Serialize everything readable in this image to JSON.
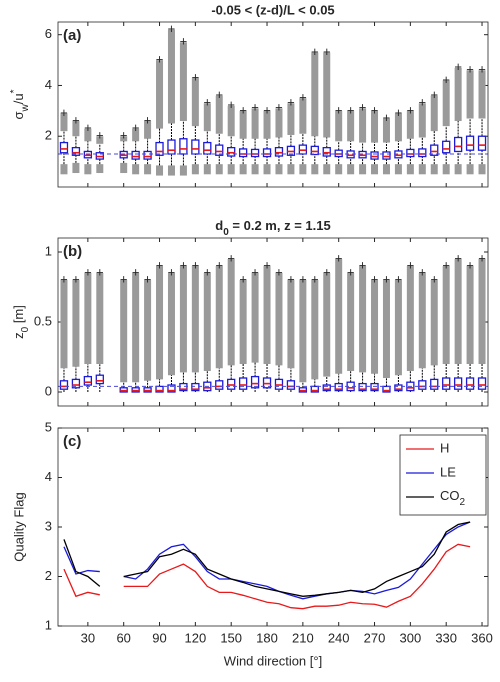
{
  "chart_data": [
    {
      "type": "box",
      "title": "-0.05 < (z-d)/L < 0.05",
      "panel_label": "(a)",
      "ylabel": [
        "σ",
        "w",
        "/u",
        "*"
      ],
      "xlim": [
        5,
        365
      ],
      "xticks": [
        30,
        60,
        90,
        120,
        150,
        180,
        210,
        240,
        270,
        300,
        330,
        360
      ],
      "ylim": [
        0,
        6.5
      ],
      "yticks": [
        2,
        4,
        6
      ],
      "reference_line": 1.3,
      "positions": [
        10,
        20,
        30,
        40,
        60,
        70,
        80,
        90,
        100,
        110,
        120,
        130,
        140,
        150,
        160,
        170,
        180,
        190,
        200,
        210,
        220,
        230,
        240,
        250,
        260,
        270,
        280,
        290,
        300,
        310,
        320,
        330,
        340,
        350,
        360
      ],
      "median": [
        1.5,
        1.35,
        1.25,
        1.2,
        1.25,
        1.2,
        1.2,
        1.4,
        1.45,
        1.5,
        1.5,
        1.45,
        1.4,
        1.35,
        1.3,
        1.3,
        1.3,
        1.35,
        1.4,
        1.45,
        1.4,
        1.35,
        1.3,
        1.25,
        1.25,
        1.2,
        1.2,
        1.25,
        1.3,
        1.3,
        1.4,
        1.5,
        1.6,
        1.65,
        1.65
      ],
      "q1": [
        1.35,
        1.25,
        1.15,
        1.1,
        1.15,
        1.1,
        1.1,
        1.25,
        1.3,
        1.3,
        1.3,
        1.3,
        1.25,
        1.22,
        1.2,
        1.2,
        1.2,
        1.22,
        1.25,
        1.3,
        1.28,
        1.22,
        1.2,
        1.15,
        1.15,
        1.1,
        1.1,
        1.15,
        1.2,
        1.2,
        1.25,
        1.35,
        1.4,
        1.45,
        1.45
      ],
      "q3": [
        1.75,
        1.55,
        1.4,
        1.35,
        1.4,
        1.4,
        1.4,
        1.75,
        1.85,
        1.9,
        1.85,
        1.75,
        1.65,
        1.55,
        1.5,
        1.48,
        1.5,
        1.55,
        1.6,
        1.65,
        1.6,
        1.55,
        1.45,
        1.42,
        1.4,
        1.38,
        1.38,
        1.42,
        1.48,
        1.5,
        1.65,
        1.8,
        1.95,
        2.0,
        2.0
      ],
      "whislo": [
        0.9,
        0.95,
        0.9,
        0.9,
        0.95,
        0.9,
        0.9,
        0.85,
        0.85,
        0.85,
        0.9,
        0.9,
        0.9,
        0.9,
        0.9,
        0.9,
        0.9,
        0.9,
        0.9,
        0.9,
        0.9,
        0.9,
        0.9,
        0.9,
        0.9,
        0.9,
        0.9,
        0.9,
        0.9,
        0.9,
        0.9,
        0.9,
        0.9,
        0.9,
        0.9
      ],
      "whishi": [
        2.2,
        2.0,
        1.8,
        1.7,
        1.8,
        1.8,
        1.9,
        2.3,
        2.5,
        2.6,
        2.4,
        2.2,
        2.1,
        2.0,
        1.9,
        1.9,
        1.9,
        1.95,
        2.05,
        2.1,
        2.0,
        1.95,
        1.8,
        1.8,
        1.75,
        1.75,
        1.75,
        1.8,
        1.9,
        1.95,
        2.2,
        2.4,
        2.6,
        2.7,
        2.7
      ],
      "outlier_max": [
        2.9,
        2.6,
        2.3,
        2.0,
        2.0,
        2.3,
        2.6,
        5.0,
        6.2,
        5.7,
        4.3,
        3.3,
        3.6,
        3.2,
        3.0,
        3.1,
        3.0,
        3.1,
        3.3,
        3.5,
        5.3,
        5.3,
        3.0,
        3.0,
        3.1,
        3.0,
        2.7,
        2.9,
        3.0,
        3.3,
        3.6,
        4.2,
        4.7,
        4.6,
        4.6
      ],
      "outlier_min": [
        0.5,
        0.55,
        0.5,
        0.55,
        0.55,
        0.5,
        0.5,
        0.45,
        0.45,
        0.45,
        0.5,
        0.5,
        0.5,
        0.5,
        0.5,
        0.5,
        0.5,
        0.5,
        0.5,
        0.5,
        0.5,
        0.5,
        0.5,
        0.5,
        0.5,
        0.5,
        0.5,
        0.5,
        0.5,
        0.5,
        0.5,
        0.5,
        0.5,
        0.5,
        0.5
      ]
    },
    {
      "type": "box",
      "title": [
        "d",
        "0",
        " = 0.2 m, z = 1.15"
      ],
      "panel_label": "(b)",
      "ylabel": [
        "z",
        "0",
        " [m]"
      ],
      "xlim": [
        5,
        365
      ],
      "xticks": [
        30,
        60,
        90,
        120,
        150,
        180,
        210,
        240,
        270,
        300,
        330,
        360
      ],
      "ylim": [
        -0.1,
        1.1
      ],
      "yticks": [
        0,
        0.5,
        1
      ],
      "reference_line": 0.04,
      "positions": [
        10,
        20,
        30,
        40,
        60,
        70,
        80,
        90,
        100,
        110,
        120,
        130,
        140,
        150,
        160,
        170,
        180,
        190,
        200,
        210,
        220,
        230,
        240,
        250,
        260,
        270,
        280,
        290,
        300,
        310,
        320,
        330,
        340,
        350,
        360
      ],
      "median": [
        0.04,
        0.05,
        0.07,
        0.08,
        0.01,
        0.01,
        0.01,
        0.01,
        0.01,
        0.02,
        0.02,
        0.03,
        0.04,
        0.05,
        0.05,
        0.06,
        0.06,
        0.05,
        0.04,
        0.01,
        0.01,
        0.02,
        0.02,
        0.03,
        0.02,
        0.02,
        0.01,
        0.02,
        0.03,
        0.04,
        0.04,
        0.05,
        0.05,
        0.05,
        0.05
      ],
      "q1": [
        0.02,
        0.03,
        0.05,
        0.06,
        0.0,
        0.0,
        0.0,
        0.0,
        0.0,
        0.01,
        0.01,
        0.01,
        0.02,
        0.02,
        0.02,
        0.03,
        0.03,
        0.02,
        0.02,
        0.0,
        0.0,
        0.01,
        0.01,
        0.01,
        0.01,
        0.01,
        0.0,
        0.01,
        0.01,
        0.02,
        0.02,
        0.02,
        0.02,
        0.02,
        0.02
      ],
      "q3": [
        0.08,
        0.09,
        0.11,
        0.12,
        0.03,
        0.03,
        0.03,
        0.04,
        0.05,
        0.06,
        0.06,
        0.07,
        0.08,
        0.09,
        0.1,
        0.11,
        0.1,
        0.09,
        0.08,
        0.03,
        0.04,
        0.05,
        0.06,
        0.07,
        0.06,
        0.06,
        0.04,
        0.05,
        0.07,
        0.08,
        0.09,
        0.1,
        0.1,
        0.1,
        0.1
      ],
      "whislo": [
        0.0,
        0.0,
        0.0,
        0.0,
        0.0,
        0.0,
        0.0,
        0.0,
        0.0,
        0.0,
        0.0,
        0.0,
        0.0,
        0.0,
        0.0,
        0.0,
        0.0,
        0.0,
        0.0,
        0.0,
        0.0,
        0.0,
        0.0,
        0.0,
        0.0,
        0.0,
        0.0,
        0.0,
        0.0,
        0.0,
        0.0,
        0.0,
        0.0,
        0.0,
        0.0
      ],
      "whishi": [
        0.17,
        0.18,
        0.2,
        0.2,
        0.07,
        0.07,
        0.08,
        0.09,
        0.12,
        0.14,
        0.14,
        0.15,
        0.17,
        0.19,
        0.2,
        0.21,
        0.2,
        0.19,
        0.17,
        0.07,
        0.09,
        0.11,
        0.13,
        0.15,
        0.14,
        0.13,
        0.1,
        0.12,
        0.15,
        0.17,
        0.19,
        0.2,
        0.2,
        0.2,
        0.2
      ],
      "outlier_max": [
        0.8,
        0.8,
        0.85,
        0.85,
        0.8,
        0.85,
        0.8,
        0.9,
        0.85,
        0.9,
        0.9,
        0.85,
        0.9,
        0.95,
        0.8,
        0.85,
        0.9,
        0.85,
        0.8,
        0.8,
        0.8,
        0.85,
        0.95,
        0.85,
        0.9,
        0.8,
        0.8,
        0.8,
        0.9,
        0.85,
        0.8,
        0.9,
        0.95,
        0.9,
        0.95
      ]
    },
    {
      "type": "line",
      "panel_label": "(c)",
      "ylabel": "Quality Flag",
      "xlabel": "Wind direction [°]",
      "xlim": [
        5,
        365
      ],
      "xticks": [
        30,
        60,
        90,
        120,
        150,
        180,
        210,
        240,
        270,
        300,
        330,
        360
      ],
      "ylim": [
        1,
        5
      ],
      "yticks": [
        1,
        2,
        3,
        4,
        5
      ],
      "x": [
        10,
        20,
        30,
        40,
        50,
        60,
        70,
        80,
        90,
        100,
        110,
        120,
        130,
        140,
        150,
        160,
        170,
        180,
        190,
        200,
        210,
        220,
        230,
        240,
        250,
        260,
        270,
        280,
        290,
        300,
        310,
        320,
        330,
        340,
        350,
        360
      ],
      "series": [
        {
          "name": "H",
          "color": "#e8191b",
          "values": [
            2.15,
            1.6,
            1.68,
            1.63,
            null,
            1.8,
            1.8,
            1.8,
            2.05,
            2.15,
            2.25,
            2.1,
            1.8,
            1.68,
            1.68,
            1.62,
            1.55,
            1.48,
            1.45,
            1.37,
            1.35,
            1.4,
            1.4,
            1.42,
            1.48,
            1.45,
            1.44,
            1.38,
            1.5,
            1.6,
            1.85,
            2.15,
            2.5,
            2.65,
            2.6,
            null
          ]
        },
        {
          "name": "LE",
          "color": "#1a1adc",
          "values": [
            2.6,
            2.05,
            2.12,
            2.1,
            null,
            2.0,
            1.95,
            2.15,
            2.45,
            2.6,
            2.65,
            2.4,
            2.1,
            1.95,
            1.95,
            1.9,
            1.85,
            1.8,
            1.7,
            1.62,
            1.55,
            1.6,
            1.65,
            1.68,
            1.72,
            1.7,
            1.65,
            1.72,
            1.78,
            1.95,
            2.25,
            2.55,
            2.85,
            3.0,
            3.1,
            null
          ]
        },
        {
          "name": [
            "CO",
            "2"
          ],
          "color": "#000000",
          "values": [
            2.75,
            2.1,
            2.0,
            1.8,
            null,
            2.0,
            2.05,
            2.1,
            2.4,
            2.45,
            2.55,
            2.45,
            2.15,
            2.05,
            1.95,
            1.88,
            1.8,
            1.75,
            1.7,
            1.65,
            1.6,
            1.62,
            1.65,
            1.68,
            1.72,
            1.68,
            1.75,
            1.9,
            2.0,
            2.1,
            2.2,
            2.45,
            2.9,
            3.05,
            3.1,
            null
          ]
        }
      ]
    }
  ]
}
